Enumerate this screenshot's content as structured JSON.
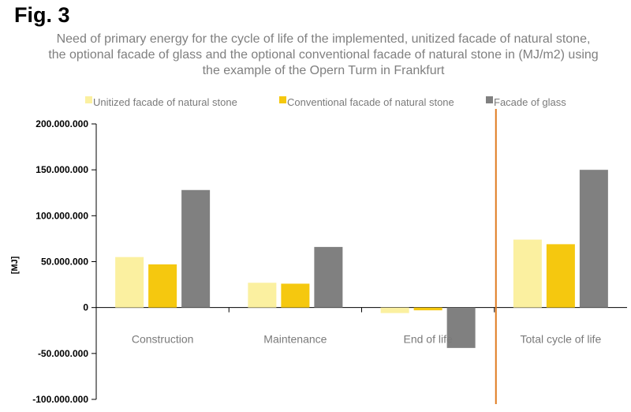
{
  "figure": {
    "label": "Fig. 3",
    "title": "Need of primary energy for the cycle of life of the implemented, unitized facade of natural stone, the optional facade of glass and the optional conventional facade of natural stone in (MJ/m2) using the example of the Opern Turm in Frankfurt"
  },
  "chart_data": {
    "type": "bar",
    "title": "Need of primary energy for the cycle of life of the implemented, unitized facade of natural stone, the optional facade of glass and the optional conventional facade of natural stone in (MJ/m2) using the example of the Opern Turm in Frankfurt",
    "ylabel": "[MJ]",
    "xlabel": "",
    "categories": [
      "Construction",
      "Maintenance",
      "End of life",
      "Total cycle of life"
    ],
    "series": [
      {
        "name": "Unitized facade of natural stone",
        "color": "#fbf0a0",
        "values": [
          55000000,
          27000000,
          -6000000,
          74000000
        ]
      },
      {
        "name": "Conventional facade of natural stone",
        "color": "#f5c80f",
        "values": [
          47000000,
          26000000,
          -3000000,
          69000000
        ]
      },
      {
        "name": "Facade of glass",
        "color": "#808080",
        "values": [
          128000000,
          66000000,
          -44000000,
          150000000
        ]
      }
    ],
    "ylim": [
      -100000000,
      200000000
    ],
    "yticks": [
      200000000,
      150000000,
      100000000,
      50000000,
      0,
      -50000000,
      -100000000
    ],
    "ytick_labels": [
      "200.000.000",
      "150.000.000",
      "100.000.000",
      "50.000.000",
      "0",
      "-50.000.000",
      "-100.000.000"
    ],
    "legend_position": "top",
    "grid": false,
    "separator_color": "#e07b20"
  }
}
